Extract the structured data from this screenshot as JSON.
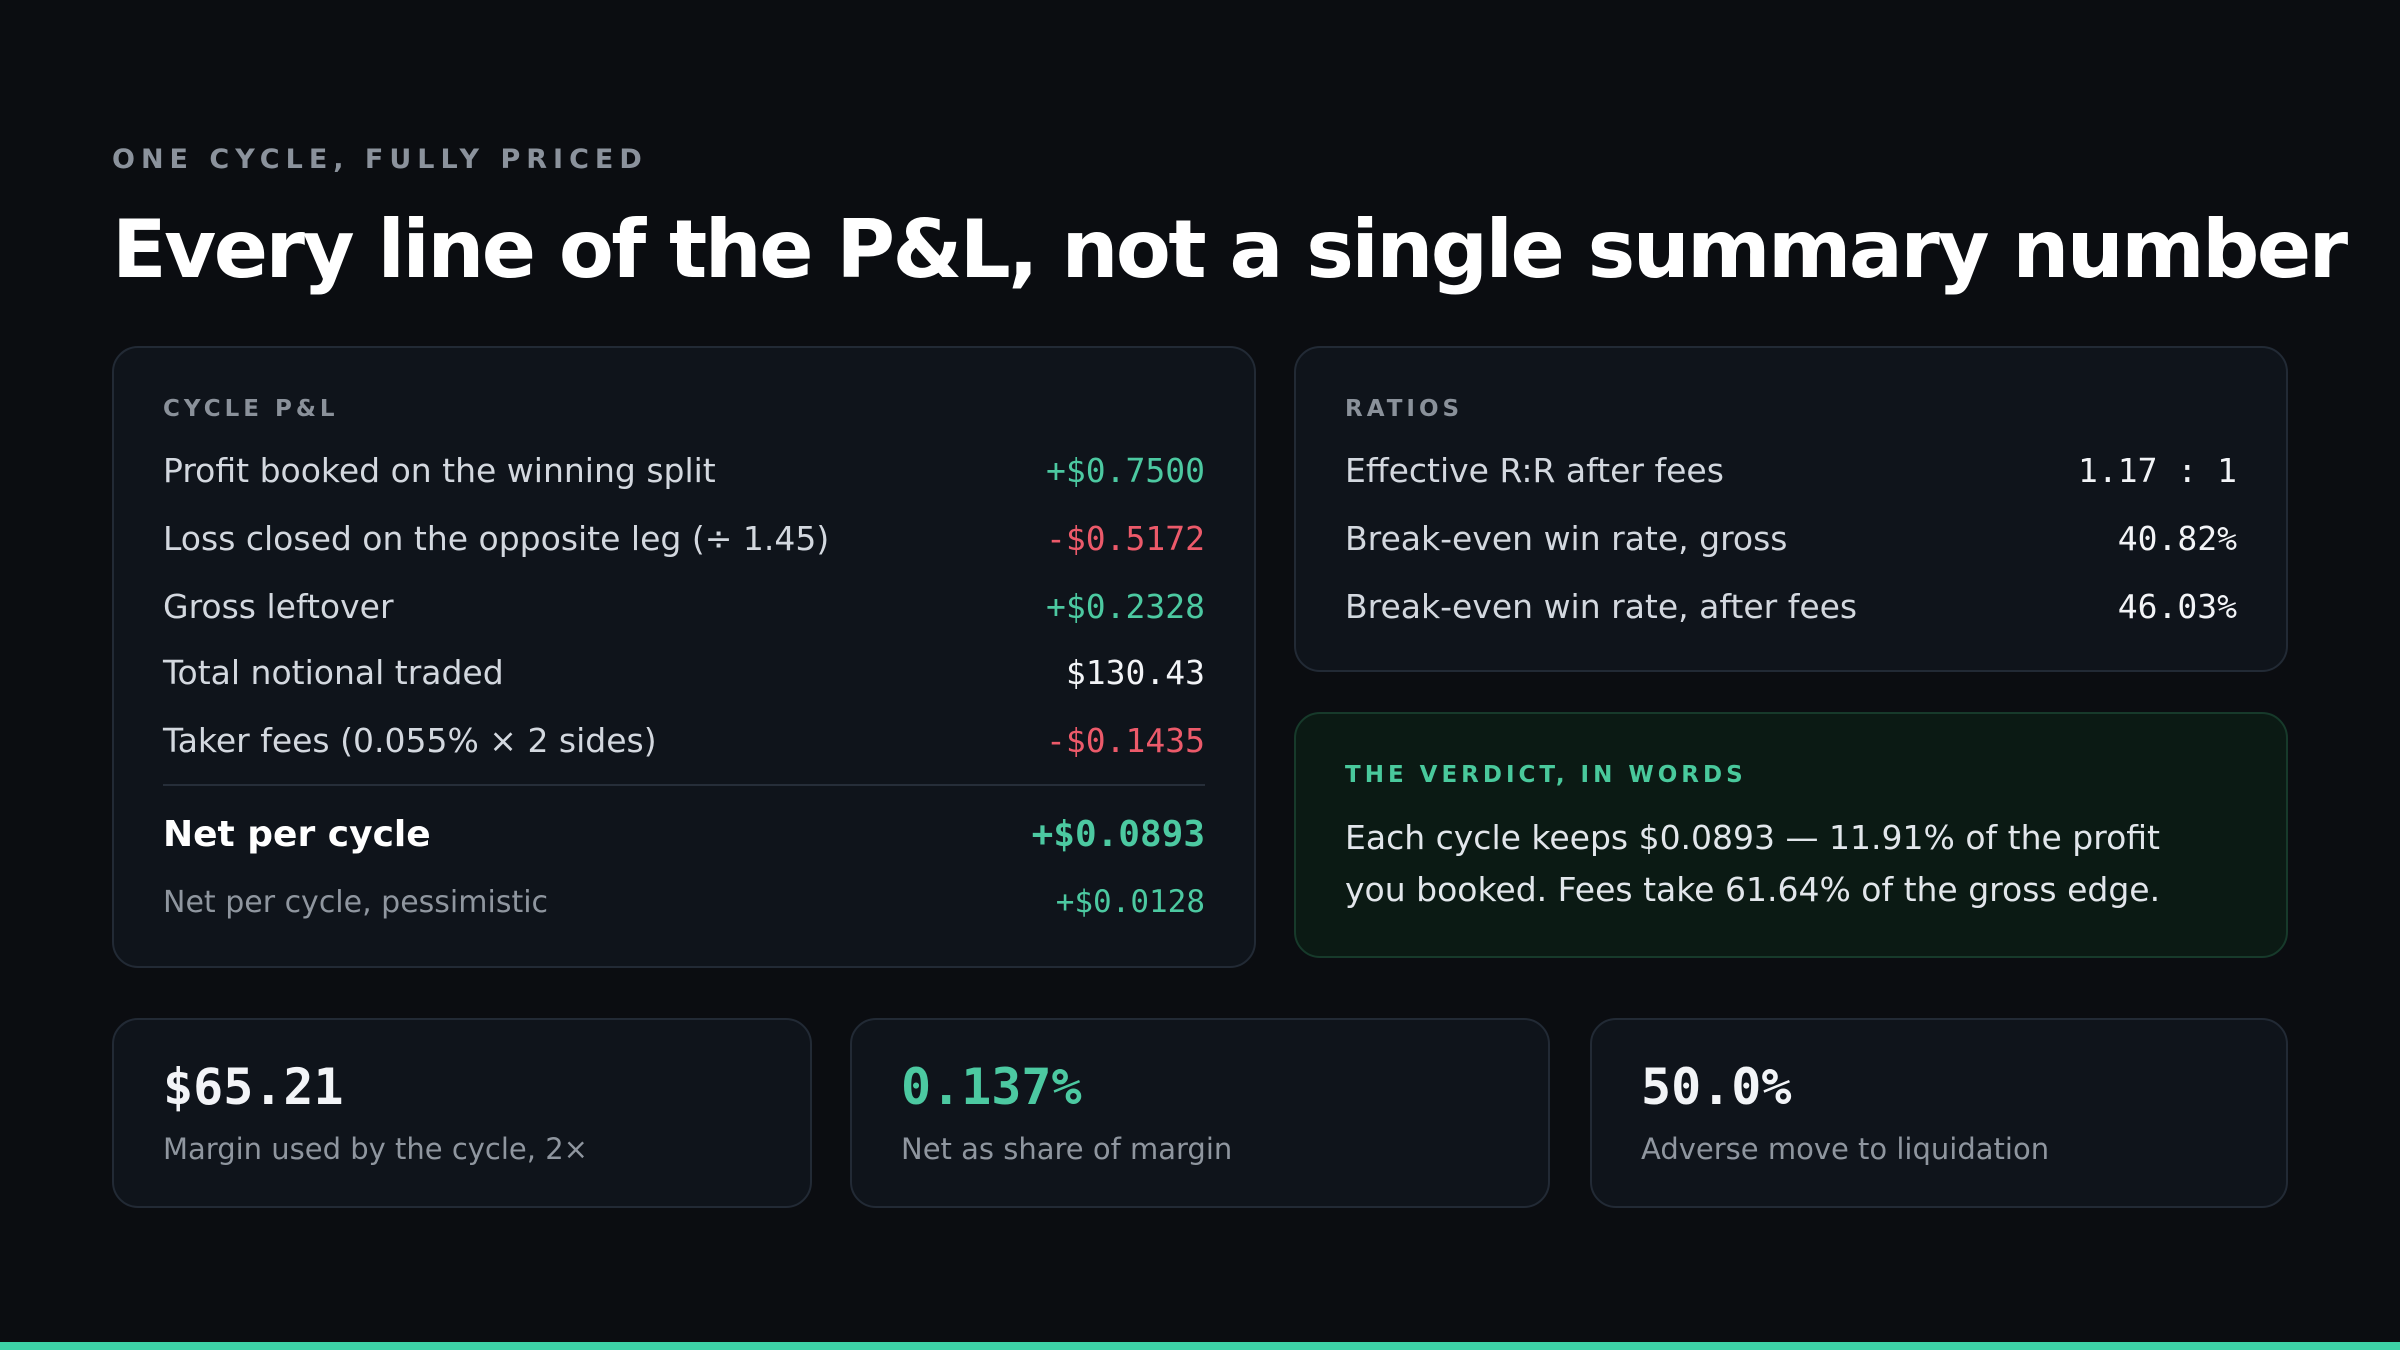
{
  "header": {
    "eyebrow": "ONE CYCLE, FULLY PRICED",
    "title": "Every line of the P&L, not a single summary number"
  },
  "cycle_pnl": {
    "label": "CYCLE P&L",
    "rows": [
      {
        "label": "Profit booked on the winning split",
        "value": "+$0.7500",
        "tone": "positive"
      },
      {
        "label": "Loss closed on the opposite leg (÷ 1.45)",
        "value": "-$0.5172",
        "tone": "negative"
      },
      {
        "label": "Gross leftover",
        "value": "+$0.2328",
        "tone": "positive"
      },
      {
        "label": "Total notional traded",
        "value": "$130.43",
        "tone": "neutral"
      },
      {
        "label": "Taker fees (0.055% × 2 sides)",
        "value": "-$0.1435",
        "tone": "negative"
      }
    ],
    "net": {
      "label": "Net per cycle",
      "value": "+$0.0893"
    },
    "pessimistic": {
      "label": "Net per cycle, pessimistic",
      "value": "+$0.0128"
    }
  },
  "ratios": {
    "label": "RATIOS",
    "rows": [
      {
        "label": "Effective R:R after fees",
        "value": "1.17 : 1"
      },
      {
        "label": "Break-even win rate, gross",
        "value": "40.82%"
      },
      {
        "label": "Break-even win rate, after fees",
        "value": "46.03%"
      }
    ]
  },
  "verdict": {
    "label": "THE VERDICT, IN WORDS",
    "text": "Each cycle keeps $0.0893 — 11.91% of the profit you booked. Fees take 61.64% of the gross edge."
  },
  "stats": [
    {
      "value": "$65.21",
      "caption": "Margin used by the cycle, 2×",
      "tone": "neutral"
    },
    {
      "value": "0.137%",
      "caption": "Net as share of margin",
      "tone": "positive"
    },
    {
      "value": "50.0%",
      "caption": "Adverse move to liquidation",
      "tone": "neutral"
    }
  ],
  "colors": {
    "positive": "#4cc9a1",
    "negative": "#ec5a6a",
    "accent_bar": "#3dd2a7",
    "background": "#0b0d11"
  }
}
